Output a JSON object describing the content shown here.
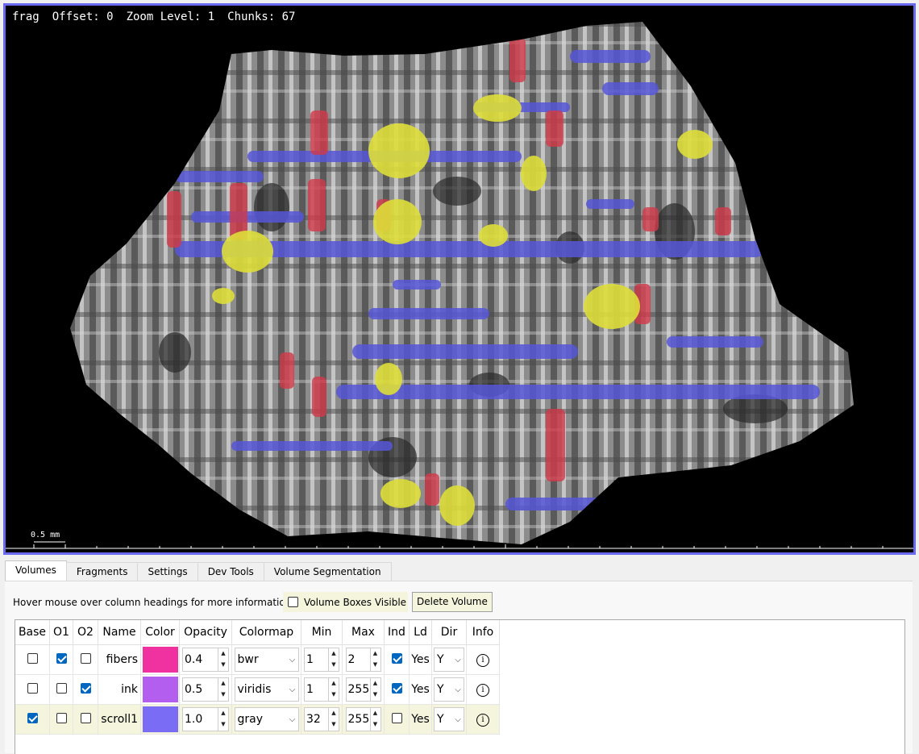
{
  "viewer": {
    "fragment_name": "frag",
    "offset_text": "Offset: 0",
    "zoom_text": "Zoom Level: 1",
    "chunks_text": "Chunks: 67",
    "scale_label": "0.5 mm",
    "border_color": "#6a6af0"
  },
  "tabs": [
    "Volumes",
    "Fragments",
    "Settings",
    "Dev Tools",
    "Volume Segmentation"
  ],
  "active_tab": "Volumes",
  "panel": {
    "hint": "Hover mouse over column headings for more information",
    "boxes_visible_label": "Volume Boxes Visible",
    "boxes_visible_checked": false,
    "delete_label": "Delete Volume"
  },
  "table": {
    "headers": [
      "Base",
      "O1",
      "O2",
      "Name",
      "Color",
      "Opacity",
      "Colormap",
      "Min",
      "Max",
      "Ind",
      "Ld",
      "Dir",
      "Info"
    ],
    "rows": [
      {
        "base": false,
        "o1": true,
        "o2": false,
        "name": "fibers",
        "color": "#f031a0",
        "opacity": "0.4",
        "colormap": "bwr",
        "min": "1",
        "max": "2",
        "ind": true,
        "ld": "Yes",
        "dir": "Y",
        "info": "i"
      },
      {
        "base": false,
        "o1": false,
        "o2": true,
        "name": "ink",
        "color": "#b45ef0",
        "opacity": "0.5",
        "colormap": "viridis",
        "min": "1",
        "max": "255",
        "ind": true,
        "ld": "Yes",
        "dir": "Y",
        "info": "i"
      },
      {
        "base": true,
        "o1": false,
        "o2": false,
        "name": "scroll1",
        "color": "#7a6cf5",
        "opacity": "1.0",
        "colormap": "gray",
        "min": "32",
        "max": "255",
        "ind": false,
        "ld": "Yes",
        "dir": "Y",
        "info": "i"
      }
    ]
  }
}
